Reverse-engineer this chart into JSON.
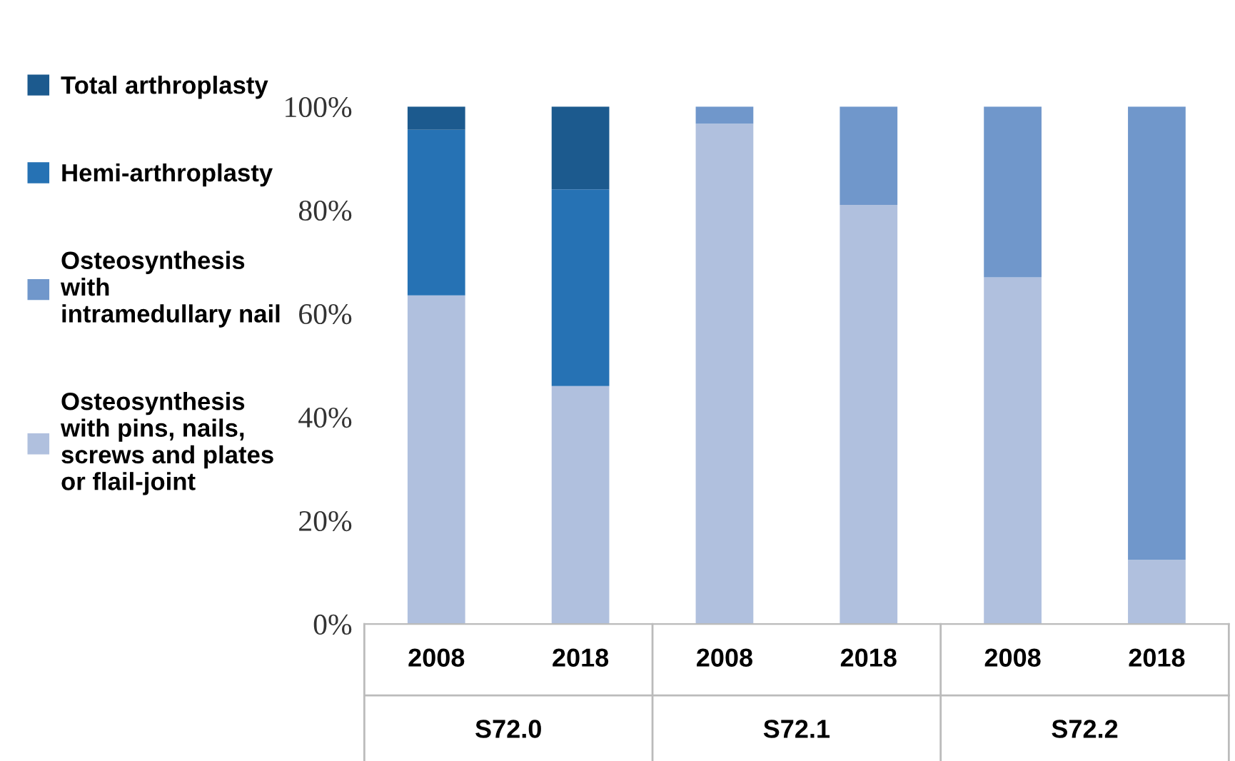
{
  "chart_data": {
    "type": "bar",
    "stacked": true,
    "categories": [
      "2008",
      "2018",
      "2008",
      "2018",
      "2008",
      "2018"
    ],
    "series": [
      {
        "name": "Osteosynthesis\nwith pins, nails,\nscrews and plates\nor flail-joint",
        "color": "#b0c0de",
        "values": [
          63.5,
          46,
          96.7,
          81,
          67,
          12.4
        ]
      },
      {
        "name": "Osteosynthesis\nwith\nintramedullary nail",
        "color": "#7097cb",
        "values": [
          null,
          null,
          3.3,
          19,
          33,
          87.6
        ]
      },
      {
        "name": "Hemi-arthroplasty",
        "color": "#2672b4",
        "values": [
          32,
          38,
          null,
          null,
          null,
          null
        ]
      },
      {
        "name": "Total arthroplasty",
        "color": "#1c5a8e",
        "values": [
          4.5,
          16,
          null,
          null,
          null,
          null
        ]
      }
    ],
    "ylim": [
      0,
      100
    ],
    "yticks": [
      {
        "value": 0,
        "label": "0%"
      },
      {
        "value": 20,
        "label": "20%"
      },
      {
        "value": 40,
        "label": "40%"
      },
      {
        "value": 60,
        "label": "60%"
      },
      {
        "value": 80,
        "label": "80%"
      },
      {
        "value": 100,
        "label": "100%"
      }
    ],
    "grid": false,
    "legend": "left",
    "annotations": [
      "S72.0",
      "S72.1",
      "S72.2"
    ]
  }
}
